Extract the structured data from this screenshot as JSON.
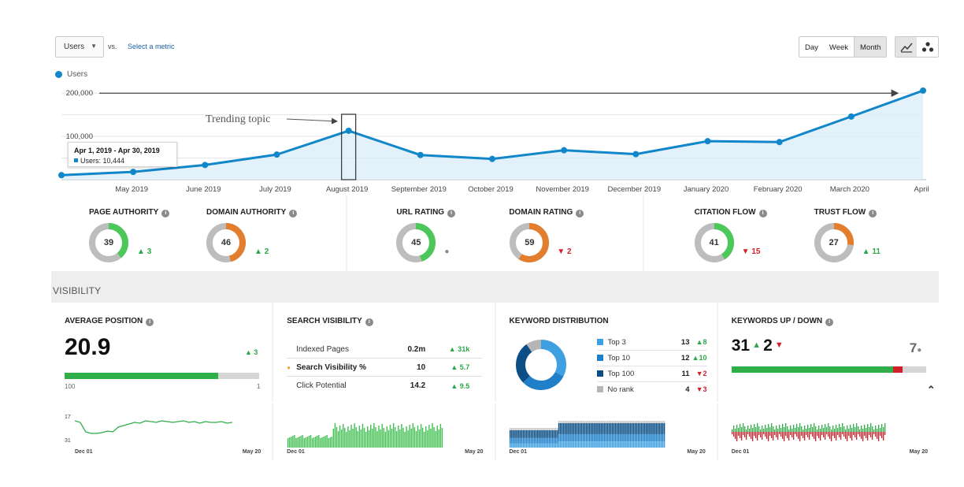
{
  "toolbar": {
    "metric_select": "Users",
    "vs_label": "vs.",
    "select_metric": "Select a metric",
    "periods": [
      "Day",
      "Week",
      "Month"
    ],
    "active_period": "Month",
    "view_icons": [
      "line-chart-icon",
      "scatter-chart-icon"
    ]
  },
  "legend": {
    "series_name": "Users",
    "color": "#1187c9"
  },
  "tooltip": {
    "range": "Apr 1, 2019 - Apr 30, 2019",
    "value": "Users: 10,444"
  },
  "annotation": {
    "text": "Trending topic"
  },
  "chart_data": {
    "type": "area",
    "categories": [
      "April 2019",
      "May 2019",
      "June 2019",
      "July 2019",
      "August 2019",
      "September 2019",
      "October 2019",
      "November 2019",
      "December 2019",
      "January 2020",
      "February 2020",
      "March 2020",
      "April"
    ],
    "series": [
      {
        "name": "Users",
        "values": [
          10444,
          18000,
          34000,
          58000,
          113000,
          57000,
          48000,
          68000,
          59000,
          89000,
          87000,
          146000,
          206000
        ]
      }
    ],
    "y_ticks": [
      {
        "value": 200000,
        "label": "200,000"
      },
      {
        "value": 100000,
        "label": "100,000"
      }
    ],
    "ylim": [
      0,
      215000
    ],
    "x_tick_labels": [
      "May 2019",
      "June 2019",
      "July 2019",
      "August 2019",
      "September 2019",
      "October 2019",
      "November 2019",
      "December 2019",
      "January 2020",
      "February 2020",
      "March 2020",
      "April"
    ],
    "grid": true,
    "legend_position": "top-left",
    "color": "#1187c9",
    "fill_color": "#d9eef8"
  },
  "metrics": [
    {
      "title": "PAGE AUTHORITY",
      "value": 39,
      "ring": "#4cc75a",
      "delta": "3",
      "dir": "up"
    },
    {
      "title": "DOMAIN AUTHORITY",
      "value": 46,
      "ring": "#e27e2d",
      "delta": "2",
      "dir": "up"
    },
    {
      "title": "URL RATING",
      "value": 45,
      "ring": "#4cc75a",
      "delta": "",
      "dir": "none"
    },
    {
      "title": "DOMAIN RATING",
      "value": 59,
      "ring": "#e27e2d",
      "delta": "2",
      "dir": "down"
    },
    {
      "title": "CITATION FLOW",
      "value": 41,
      "ring": "#4cc75a",
      "delta": "15",
      "dir": "down"
    },
    {
      "title": "TRUST FLOW",
      "value": 27,
      "ring": "#e27e2d",
      "delta": "11",
      "dir": "up"
    }
  ],
  "visibility_label": "VISIBILITY",
  "cards": {
    "avg_position": {
      "title": "AVERAGE POSITION",
      "value": "20.9",
      "delta": "3",
      "bar_fraction": 0.79,
      "left_label": "100",
      "right_label": "1"
    },
    "search_visibility": {
      "title": "SEARCH VISIBILITY",
      "rows": [
        {
          "name": "Indexed Pages",
          "value": "0.2m",
          "delta": "31k"
        },
        {
          "name": "Search Visibility %",
          "value": "10",
          "delta": "5.7"
        },
        {
          "name": "Click Potential",
          "value": "14.2",
          "delta": "9.5"
        }
      ]
    },
    "keyword_distribution": {
      "title": "KEYWORD DISTRIBUTION",
      "rows": [
        {
          "name": "Top 3",
          "value": "13",
          "delta": "8",
          "dir": "up",
          "color": "#3ea0e0"
        },
        {
          "name": "Top 10",
          "value": "12",
          "delta": "10",
          "dir": "up",
          "color": "#1f7fc8"
        },
        {
          "name": "Top 100",
          "value": "11",
          "delta": "2",
          "dir": "down",
          "color": "#0b4f86"
        },
        {
          "name": "No rank",
          "value": "4",
          "delta": "3",
          "dir": "down",
          "color": "#b5b5b5"
        }
      ]
    },
    "keywords_updown": {
      "title": "KEYWORDS UP / DOWN",
      "up": "31",
      "down": "2",
      "neutral": "7",
      "bar_fraction": 0.83
    }
  },
  "sparklines": {
    "start_label": "Dec 01",
    "end_label": "May 20",
    "avg_pos_labels": [
      "17",
      "31"
    ]
  }
}
